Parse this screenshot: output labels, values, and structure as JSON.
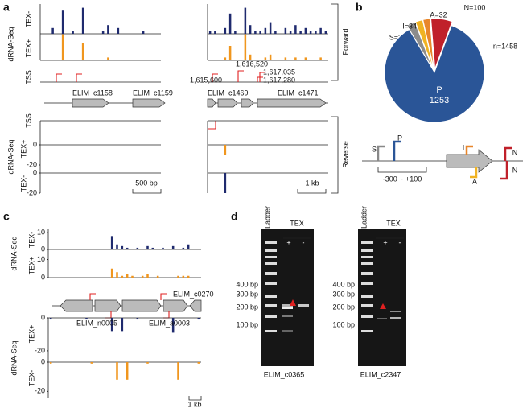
{
  "panel_a": {
    "label": "a",
    "group_label": "dRNA-Seq",
    "rows": [
      "TEX-",
      "TEX+",
      "TSS"
    ],
    "reverse_rows": [
      "TSS",
      "TEX+",
      "TEX-"
    ],
    "strands": [
      "Forward",
      "Reverse"
    ],
    "tracks": [
      {
        "values": [
          0,
          0,
          2,
          0,
          8,
          0,
          1,
          0,
          9,
          0,
          0,
          0,
          1,
          3,
          0,
          2,
          0,
          0,
          0,
          0,
          1,
          0,
          0,
          0
        ]
      },
      {
        "values": [
          0,
          0,
          0,
          0,
          9,
          0,
          0,
          0,
          6,
          0,
          0,
          0,
          0,
          1,
          0,
          0,
          0,
          0,
          0,
          0,
          0,
          0,
          0,
          0
        ]
      },
      {
        "values": [
          1,
          1,
          0,
          2,
          7,
          1,
          0,
          9,
          3,
          1,
          1,
          2,
          4,
          1,
          0,
          2,
          1,
          3,
          1,
          2,
          1,
          1,
          2,
          1
        ]
      },
      {
        "values": [
          0,
          0,
          0,
          1,
          5,
          0,
          0,
          9,
          2,
          0,
          0,
          1,
          2,
          0,
          0,
          1,
          0,
          1,
          0,
          1,
          0,
          0,
          1,
          0
        ]
      }
    ],
    "reverse_ylim": [
      -20,
      0
    ],
    "reverse_ticks": [
      0,
      -20
    ],
    "reverse_tracks": [
      {
        "values": [
          0,
          0,
          0,
          -10,
          0,
          0,
          0,
          0,
          0,
          0,
          0,
          0,
          0,
          0,
          0,
          0,
          0,
          0,
          0,
          0,
          0,
          0,
          0,
          0
        ]
      },
      {
        "values": [
          0,
          0,
          0,
          -20,
          0,
          0,
          0,
          0,
          0,
          0,
          0,
          0,
          0,
          0,
          0,
          0,
          0,
          0,
          0,
          0,
          0,
          0,
          0,
          0
        ]
      }
    ],
    "genes": [
      "ELIM_c1158",
      "ELIM_c1159",
      "ELIM_c1469",
      "ELIM_c1471"
    ],
    "coordinates": [
      "1,616,520",
      "1,617,035",
      "1,615,600",
      "1,617,280"
    ],
    "scale_bars": [
      "500 bp",
      "1 kb"
    ]
  },
  "panel_b": {
    "label": "b",
    "pie": {
      "type": "pie",
      "total_label": "n=1458",
      "slices": [
        {
          "name": "S",
          "value": 39,
          "label": "S=39",
          "color": "#8c8c8c"
        },
        {
          "name": "I",
          "value": 34,
          "label": "I=34",
          "color": "#f0b323"
        },
        {
          "name": "A",
          "value": 32,
          "label": "A=32",
          "color": "#e8862a"
        },
        {
          "name": "N",
          "value": 100,
          "label": "N=100",
          "color": "#c0202a"
        },
        {
          "name": "P",
          "value": 1253,
          "label": "P",
          "color": "#2a5597"
        }
      ]
    },
    "diagram_labels": [
      "S",
      "P",
      "I",
      "A",
      "N",
      "N"
    ],
    "range": "-300 ~ +100"
  },
  "panel_c": {
    "label": "c",
    "group_label": "dRNA-Seq",
    "rows": [
      "TEX-",
      "TEX+"
    ],
    "reverse_rows": [
      "TEX+",
      "TEX-"
    ],
    "tracks": [
      {
        "ylim": [
          0,
          12
        ],
        "yticks": [
          0,
          10
        ],
        "values": [
          0,
          0,
          0,
          0,
          0,
          0,
          0,
          0,
          0,
          0,
          0,
          0,
          8,
          3,
          2,
          1,
          0,
          1,
          0,
          2,
          1,
          0,
          1,
          0,
          2,
          0,
          1,
          3,
          0,
          0
        ]
      },
      {
        "ylim": [
          0,
          12
        ],
        "yticks": [
          0,
          10
        ],
        "values": [
          0,
          0,
          0,
          0,
          0,
          0,
          0,
          0,
          0,
          0,
          0,
          0,
          5,
          3,
          1,
          2,
          1,
          0,
          1,
          2,
          0,
          1,
          0,
          0,
          0,
          1,
          1,
          1,
          0,
          0
        ]
      }
    ],
    "reverse_tracks": [
      {
        "ylim": [
          -22,
          0
        ],
        "yticks": [
          0,
          -20
        ],
        "values": [
          -1,
          0,
          0,
          0,
          0,
          0,
          0,
          -1,
          0,
          0,
          0,
          0,
          -8,
          0,
          -8,
          0,
          0,
          -1,
          0,
          0,
          0,
          0,
          0,
          0,
          -9,
          0,
          0,
          0,
          0,
          -1
        ]
      },
      {
        "ylim": [
          -22,
          0
        ],
        "yticks": [
          0,
          -20
        ],
        "values": [
          -1,
          0,
          0,
          0,
          0,
          0,
          0,
          0,
          -1,
          0,
          0,
          0,
          0,
          -12,
          0,
          -12,
          0,
          0,
          0,
          -1,
          0,
          0,
          0,
          0,
          0,
          -12,
          0,
          0,
          0,
          -1
        ]
      }
    ],
    "genes": [
      "ELIM_c0270",
      "ELIM_n0005",
      "ELIM_a0003"
    ],
    "scale_bar": "1 kb"
  },
  "panel_d": {
    "label": "d",
    "ladder": "Ladder",
    "treatment": "TEX",
    "lanes": [
      "+",
      "-"
    ],
    "sizes": [
      "400 bp",
      "300 bp",
      "200 bp",
      "100 bp"
    ],
    "gels": [
      "ELIM_c0365",
      "ELIM_c2347"
    ]
  }
}
